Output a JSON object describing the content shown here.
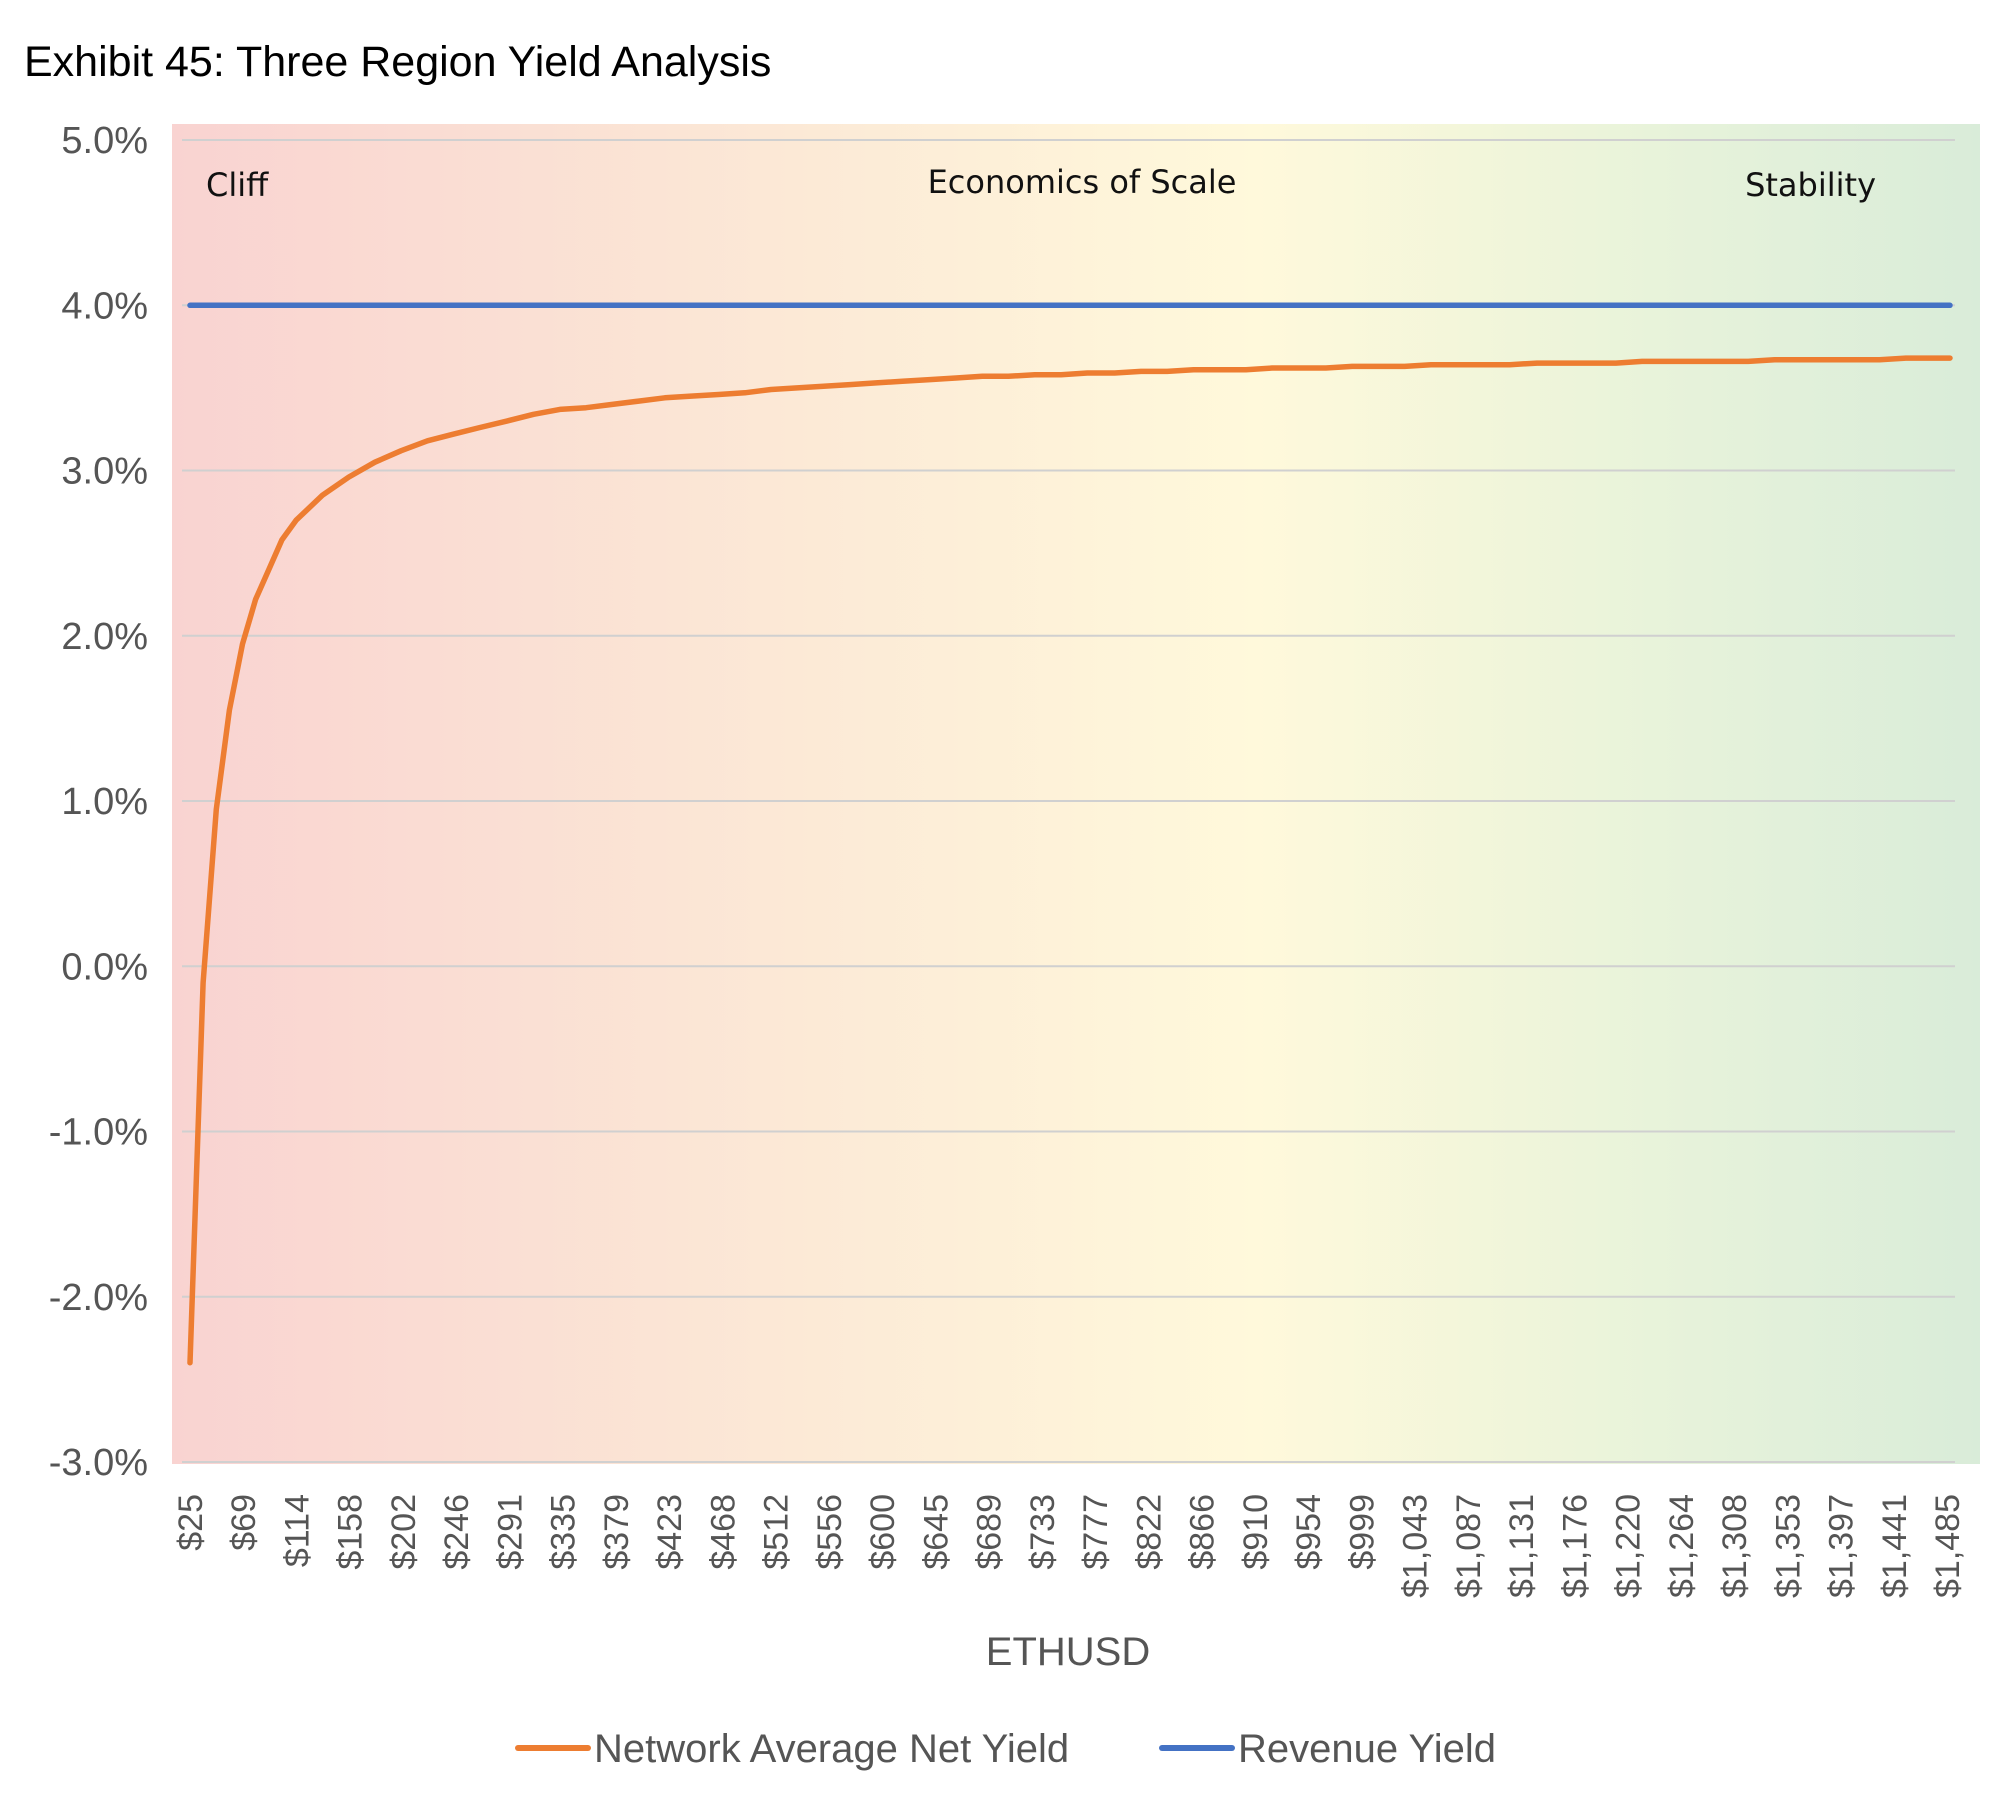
{
  "chart_data": {
    "type": "line",
    "title": "Exhibit 45: Three Region Yield Analysis",
    "xlabel": "ETHUSD",
    "ylabel": "",
    "y_ticks": [
      "5.0%",
      "4.0%",
      "3.0%",
      "2.0%",
      "1.0%",
      "0.0%",
      "-1.0%",
      "-2.0%",
      "-3.0%"
    ],
    "ylim": [
      -3.0,
      5.0
    ],
    "x_ticks": [
      "$25",
      "$69",
      "$114",
      "$158",
      "$202",
      "$246",
      "$291",
      "$335",
      "$379",
      "$423",
      "$468",
      "$512",
      "$556",
      "$600",
      "$645",
      "$689",
      "$733",
      "$777",
      "$822",
      "$866",
      "$910",
      "$954",
      "$999",
      "$1,043",
      "$1,087",
      "$1,131",
      "$1,176",
      "$1,220",
      "$1,264",
      "$1,308",
      "$1,353",
      "$1,397",
      "$1,441",
      "$1,485"
    ],
    "xlim": [
      25,
      1500
    ],
    "grid": true,
    "legend_position": "bottom",
    "regions": [
      {
        "label": "Cliff"
      },
      {
        "label": "Economics of Scale"
      },
      {
        "label": "Stability"
      }
    ],
    "series": [
      {
        "name": "Network Average Net Yield",
        "color": "#ED7D31",
        "x": [
          25,
          36,
          47,
          58,
          69,
          80,
          91,
          102,
          114,
          136,
          158,
          180,
          202,
          224,
          246,
          268,
          291,
          313,
          335,
          357,
          379,
          401,
          423,
          445,
          468,
          490,
          512,
          534,
          556,
          578,
          600,
          622,
          645,
          667,
          689,
          711,
          733,
          755,
          777,
          800,
          822,
          844,
          866,
          888,
          910,
          932,
          954,
          977,
          999,
          1021,
          1043,
          1065,
          1087,
          1109,
          1131,
          1154,
          1176,
          1198,
          1220,
          1242,
          1264,
          1286,
          1308,
          1331,
          1353,
          1375,
          1397,
          1419,
          1441,
          1463,
          1485,
          1500
        ],
        "values": [
          -2.4,
          -0.1,
          0.95,
          1.55,
          1.95,
          2.22,
          2.4,
          2.58,
          2.7,
          2.85,
          2.96,
          3.05,
          3.12,
          3.18,
          3.22,
          3.26,
          3.3,
          3.34,
          3.37,
          3.38,
          3.4,
          3.42,
          3.44,
          3.45,
          3.46,
          3.47,
          3.49,
          3.5,
          3.51,
          3.52,
          3.53,
          3.54,
          3.55,
          3.56,
          3.57,
          3.57,
          3.58,
          3.58,
          3.59,
          3.59,
          3.6,
          3.6,
          3.61,
          3.61,
          3.61,
          3.62,
          3.62,
          3.62,
          3.63,
          3.63,
          3.63,
          3.64,
          3.64,
          3.64,
          3.64,
          3.65,
          3.65,
          3.65,
          3.65,
          3.66,
          3.66,
          3.66,
          3.66,
          3.66,
          3.67,
          3.67,
          3.67,
          3.67,
          3.67,
          3.68,
          3.68,
          3.68
        ]
      },
      {
        "name": "Revenue Yield",
        "color": "#4472C4",
        "x": [
          25,
          1500
        ],
        "values": [
          4.0,
          4.0
        ]
      }
    ],
    "background_gradient": [
      "#F9D3D1",
      "#FBE5D5",
      "#FFF9DB",
      "#E8F3DA",
      "#D9ECD9"
    ],
    "gridline_color": "#D0D0D0",
    "axis_text_color": "#555555"
  }
}
